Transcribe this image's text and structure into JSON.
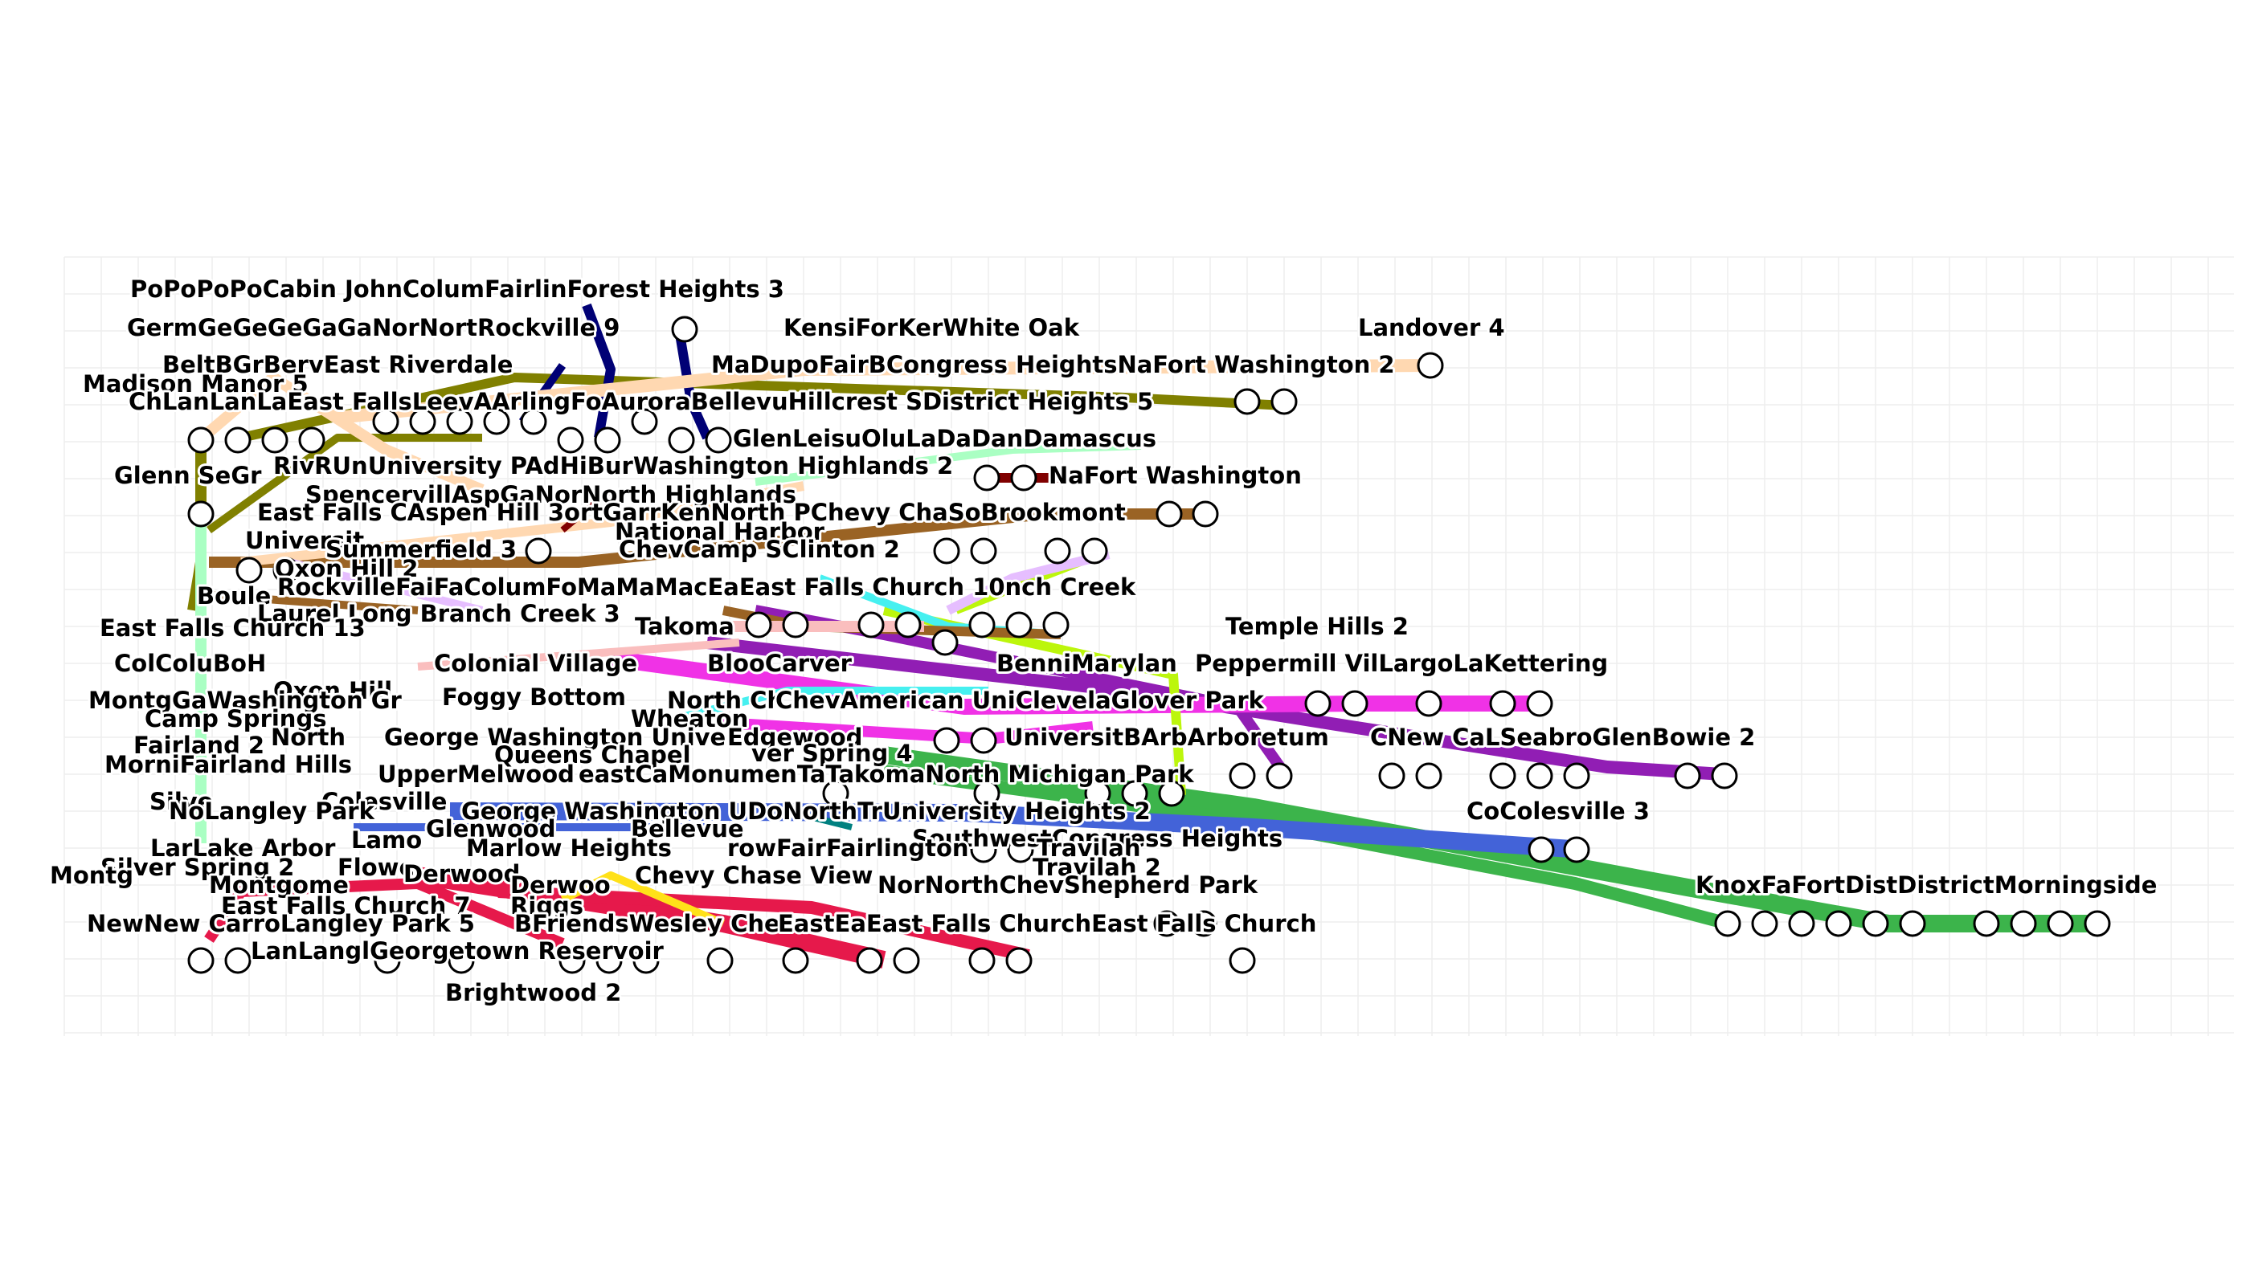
{
  "diagram": {
    "type": "transit-map",
    "colors": {
      "green": "#3cb44b",
      "royal_blue": "#4363d8",
      "purple": "#911eb4",
      "magenta": "#f032e6",
      "crimson": "#e6194b",
      "lime": "#bcf60c",
      "cyan": "#46f0f0",
      "olive": "#808000",
      "navy": "#000075",
      "brown": "#9a6324",
      "peach": "#ffd8b1",
      "mint": "#aaffc3",
      "lavender": "#e6beff",
      "pink": "#fabebe",
      "maroon": "#800000",
      "yellow": "#ffe119",
      "teal": "#008080"
    },
    "labels": [
      "PoPoPoPoCabin JohnColumFairlinForest Heights 3",
      "GermGeGeGeGaGaNorNortRockville 9",
      "KensiForKerWhite Oak",
      "Landover 4",
      "BeltBGrBervEast Riverdale",
      "MaDupoFairBCongress HeightsNaFort Washington 2",
      "Madison Manor 5",
      "ChLanLanLaEast FallsLeevAArlingFoAuroraBellevuHillcrest SDistrict Heights 5",
      "GlenLeisuOluLaDaDanDamascus",
      "Glenn SeGr",
      "RivRUnUniversity PAdHiBurWashington Highlands 2",
      "NaFort Washington",
      "SpencervillAspGaNorNorth Highlands",
      "East Falls CAspen Hill 3ortGarrKenNorth PChevy ChaSoBrookmont",
      "National Harbor",
      "Universit",
      "Summerfield 3",
      "ChevCamp SClinton 2",
      "Oxon Hill 2",
      "Boule",
      "RockvilleFaiFaColumFoMaMaMacEaEast Falls Church 10nch Creek",
      "Laurel Long Branch Creek 3",
      "East Falls Church 13",
      "Takoma",
      "Temple Hills 2",
      "Colonial Village",
      "ColColuBoH",
      "BlooCarver",
      "BenniMarylan",
      "Peppermill VilLargoLaKettering",
      "Oxon Hill",
      "Foggy Bottom",
      "North Ch",
      "ChevAmerican UniClevelaGlover Park",
      "MontgGaWashington Gr",
      "Camp Springs",
      "Wheaton",
      "North",
      "George Washington Unive",
      "Edgewood",
      "UniversitBArbArboretum",
      "CNew CaLSeabroGlenBowie 2",
      "Fairland 2",
      "Queens Chapel",
      "ver Spring 4",
      "MorniFairland Hills",
      "UpperMelwood",
      "eastCaMonumenTaTakomaNorth Michigan Park",
      "Silve",
      "Colesville",
      "CoColesville 3",
      "NoLangley Park",
      "George Washington UDoNorthTrUniversity Heights 2",
      "Glenwood",
      "Bellevue",
      "SouthwestCongress Heights",
      "LarLake Arbor",
      "Lamo",
      "Marlow Heights",
      "rowFairFairlington",
      "Travilah",
      "Travilah 2",
      "Silver Spring 2",
      "Flowe",
      "Derwood",
      "Chevy Chase View",
      "NorNorthChevShepherd Park",
      "KnoxFaFortDistDistrictMorningside",
      "Montg",
      "Montgome",
      "Derwoo",
      "East Falls Church 7",
      "Riggs",
      "NewNew CarroLangley Park 5",
      "BFriendsWesley Che",
      "EastEaEast Falls ChurchEast Falls Church",
      "LanLanglGeorgetown Reservoir",
      "Brightwood 2"
    ]
  }
}
